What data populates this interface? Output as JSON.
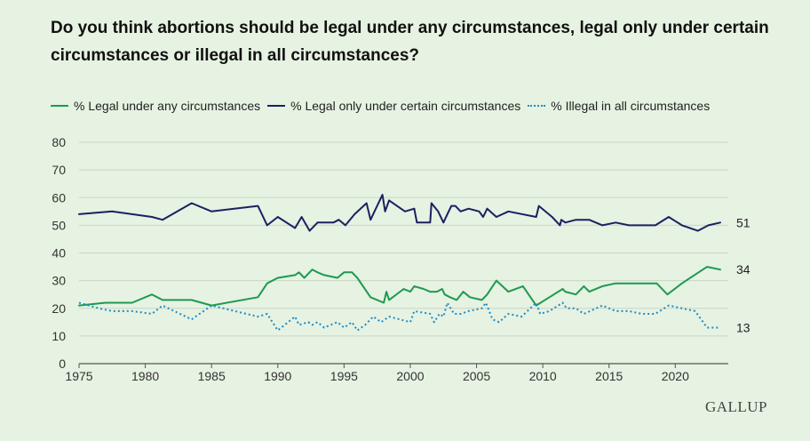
{
  "title": "Do you think abortions should be legal under any circumstances, legal only under certain circumstances or illegal in all circumstances?",
  "brand": "GALLUP",
  "chart_data": {
    "type": "line",
    "title": "Do you think abortions should be legal under any circumstances, legal only under certain circumstances or illegal in all circumstances?",
    "xlabel": "",
    "ylabel": "",
    "xlim": [
      1975,
      2024
    ],
    "ylim": [
      0,
      80
    ],
    "x_ticks": [
      1975,
      1980,
      1985,
      1990,
      1995,
      2000,
      2005,
      2010,
      2015,
      2020
    ],
    "y_ticks": [
      0,
      10,
      20,
      30,
      40,
      50,
      60,
      70,
      80
    ],
    "grid": true,
    "legend_position": "top-left",
    "series": [
      {
        "name": "% Legal under any circumstances",
        "color": "#1d9a4f",
        "style": "solid",
        "end_label": "34",
        "points": [
          [
            1975,
            21
          ],
          [
            1977,
            22
          ],
          [
            1979,
            22
          ],
          [
            1980.5,
            25
          ],
          [
            1981.3,
            23
          ],
          [
            1983.5,
            23
          ],
          [
            1985,
            21
          ],
          [
            1988.5,
            24
          ],
          [
            1989.2,
            29
          ],
          [
            1990,
            31
          ],
          [
            1991.3,
            32
          ],
          [
            1991.6,
            33
          ],
          [
            1992,
            31
          ],
          [
            1992.6,
            34
          ],
          [
            1993,
            33
          ],
          [
            1993.5,
            32
          ],
          [
            1994.5,
            31
          ],
          [
            1995,
            33
          ],
          [
            1995.6,
            33
          ],
          [
            1996,
            31
          ],
          [
            1997,
            24
          ],
          [
            1998,
            22
          ],
          [
            1998.2,
            26
          ],
          [
            1998.4,
            23
          ],
          [
            1999.5,
            27
          ],
          [
            2000,
            26
          ],
          [
            2000.3,
            28
          ],
          [
            2001,
            27
          ],
          [
            2001.5,
            26
          ],
          [
            2002,
            26
          ],
          [
            2002.4,
            27
          ],
          [
            2002.6,
            25
          ],
          [
            2003,
            24
          ],
          [
            2003.5,
            23
          ],
          [
            2004,
            26
          ],
          [
            2004.5,
            24
          ],
          [
            2005.4,
            23
          ],
          [
            2005.8,
            25
          ],
          [
            2006.5,
            30
          ],
          [
            2007.4,
            26
          ],
          [
            2008.5,
            28
          ],
          [
            2009.5,
            21
          ],
          [
            2010.5,
            24
          ],
          [
            2011.5,
            27
          ],
          [
            2011.7,
            26
          ],
          [
            2012.5,
            25
          ],
          [
            2013.1,
            28
          ],
          [
            2013.5,
            26
          ],
          [
            2014.5,
            28
          ],
          [
            2015.5,
            29
          ],
          [
            2018.6,
            29
          ],
          [
            2019.4,
            25
          ],
          [
            2020.5,
            29
          ],
          [
            2022.4,
            35
          ],
          [
            2023.4,
            34
          ]
        ]
      },
      {
        "name": "% Legal only under certain circumstances",
        "color": "#1b2061",
        "style": "solid",
        "end_label": "51",
        "points": [
          [
            1975,
            54
          ],
          [
            1977.5,
            55
          ],
          [
            1980.5,
            53
          ],
          [
            1981.3,
            52
          ],
          [
            1983.5,
            58
          ],
          [
            1985,
            55
          ],
          [
            1988.5,
            57
          ],
          [
            1989.2,
            50
          ],
          [
            1990,
            53
          ],
          [
            1991.3,
            49
          ],
          [
            1991.8,
            53
          ],
          [
            1992.4,
            48
          ],
          [
            1993,
            51
          ],
          [
            1994.2,
            51
          ],
          [
            1994.6,
            52
          ],
          [
            1995.1,
            50
          ],
          [
            1995.8,
            54
          ],
          [
            1996.7,
            58
          ],
          [
            1997,
            52
          ],
          [
            1997.9,
            61
          ],
          [
            1998.1,
            55
          ],
          [
            1998.4,
            59
          ],
          [
            1999.6,
            55
          ],
          [
            2000.3,
            56
          ],
          [
            2000.5,
            51
          ],
          [
            2001.5,
            51
          ],
          [
            2001.6,
            58
          ],
          [
            2002.1,
            55
          ],
          [
            2002.5,
            51
          ],
          [
            2002.8,
            54
          ],
          [
            2003.1,
            57
          ],
          [
            2003.4,
            57
          ],
          [
            2003.8,
            55
          ],
          [
            2004.4,
            56
          ],
          [
            2005.2,
            55
          ],
          [
            2005.5,
            53
          ],
          [
            2005.8,
            56
          ],
          [
            2006.5,
            53
          ],
          [
            2007.4,
            55
          ],
          [
            2009.5,
            53
          ],
          [
            2009.7,
            57
          ],
          [
            2010.7,
            53
          ],
          [
            2011.3,
            50
          ],
          [
            2011.4,
            52
          ],
          [
            2011.7,
            51
          ],
          [
            2012.5,
            52
          ],
          [
            2013.5,
            52
          ],
          [
            2014.5,
            50
          ],
          [
            2015.5,
            51
          ],
          [
            2016.5,
            50
          ],
          [
            2018.5,
            50
          ],
          [
            2019.5,
            53
          ],
          [
            2020.5,
            50
          ],
          [
            2021.7,
            48
          ],
          [
            2022.5,
            50
          ],
          [
            2023.4,
            51
          ]
        ]
      },
      {
        "name": "% Illegal in all circumstances",
        "color": "#1e8bc3",
        "style": "dotted",
        "end_label": "13",
        "points": [
          [
            1975,
            22
          ],
          [
            1976.5,
            20
          ],
          [
            1977.5,
            19
          ],
          [
            1979,
            19
          ],
          [
            1980.5,
            18
          ],
          [
            1981.3,
            21
          ],
          [
            1983.5,
            16
          ],
          [
            1985,
            21
          ],
          [
            1988.5,
            17
          ],
          [
            1989.2,
            18
          ],
          [
            1990,
            12
          ],
          [
            1991.3,
            17
          ],
          [
            1991.6,
            14
          ],
          [
            1992.3,
            15
          ],
          [
            1992.6,
            14
          ],
          [
            1993,
            15
          ],
          [
            1993.5,
            13
          ],
          [
            1994.5,
            15
          ],
          [
            1995,
            13
          ],
          [
            1995.6,
            15
          ],
          [
            1996,
            12
          ],
          [
            1996.6,
            14
          ],
          [
            1997.2,
            17
          ],
          [
            1997.8,
            15
          ],
          [
            1998.4,
            17
          ],
          [
            2000,
            15
          ],
          [
            2000.3,
            19
          ],
          [
            2001.5,
            18
          ],
          [
            2001.8,
            15
          ],
          [
            2002.2,
            18
          ],
          [
            2002.5,
            17
          ],
          [
            2002.8,
            22
          ],
          [
            2003.3,
            18
          ],
          [
            2003.8,
            18
          ],
          [
            2004.4,
            19
          ],
          [
            2005.4,
            20
          ],
          [
            2005.7,
            22
          ],
          [
            2006.2,
            16
          ],
          [
            2006.7,
            15
          ],
          [
            2007.4,
            18
          ],
          [
            2008.4,
            17
          ],
          [
            2009.5,
            22
          ],
          [
            2009.8,
            18
          ],
          [
            2010.5,
            19
          ],
          [
            2011.5,
            22
          ],
          [
            2011.8,
            20
          ],
          [
            2012.5,
            20
          ],
          [
            2013.1,
            18
          ],
          [
            2014.5,
            21
          ],
          [
            2015.5,
            19
          ],
          [
            2016.5,
            19
          ],
          [
            2017.5,
            18
          ],
          [
            2018.5,
            18
          ],
          [
            2019.5,
            21
          ],
          [
            2021.5,
            19
          ],
          [
            2022.4,
            13
          ],
          [
            2023.4,
            13
          ]
        ]
      }
    ]
  }
}
